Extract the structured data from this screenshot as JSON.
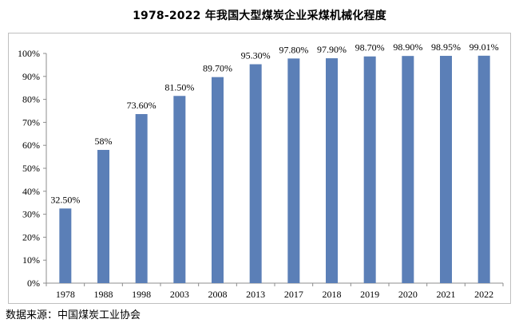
{
  "chart_data": {
    "type": "bar",
    "title": "1978-2022 年我国大型煤炭企业采煤机械化程度",
    "categories": [
      "1978",
      "1988",
      "1998",
      "2003",
      "2008",
      "2013",
      "2017",
      "2018",
      "2019",
      "2020",
      "2021",
      "2022"
    ],
    "values": [
      32.5,
      58,
      73.6,
      81.5,
      89.7,
      95.3,
      97.8,
      97.9,
      98.7,
      98.9,
      98.95,
      99.01
    ],
    "data_labels": [
      "32.50%",
      "58%",
      "73.60%",
      "81.50%",
      "89.70%",
      "95.30%",
      "97.80%",
      "97.90%",
      "98.70%",
      "98.90%",
      "98.95%",
      "99.01%"
    ],
    "y_ticks": [
      0,
      10,
      20,
      30,
      40,
      50,
      60,
      70,
      80,
      90,
      100
    ],
    "y_tick_labels": [
      "0%",
      "10%",
      "20%",
      "30%",
      "40%",
      "50%",
      "60%",
      "70%",
      "80%",
      "90%",
      "100%"
    ],
    "ylim": [
      0,
      100
    ],
    "xlabel": "",
    "ylabel": "",
    "grid": false,
    "legend": "none",
    "bar_color": "#5b7fb7"
  },
  "source": "数据来源：中国煤炭工业协会"
}
